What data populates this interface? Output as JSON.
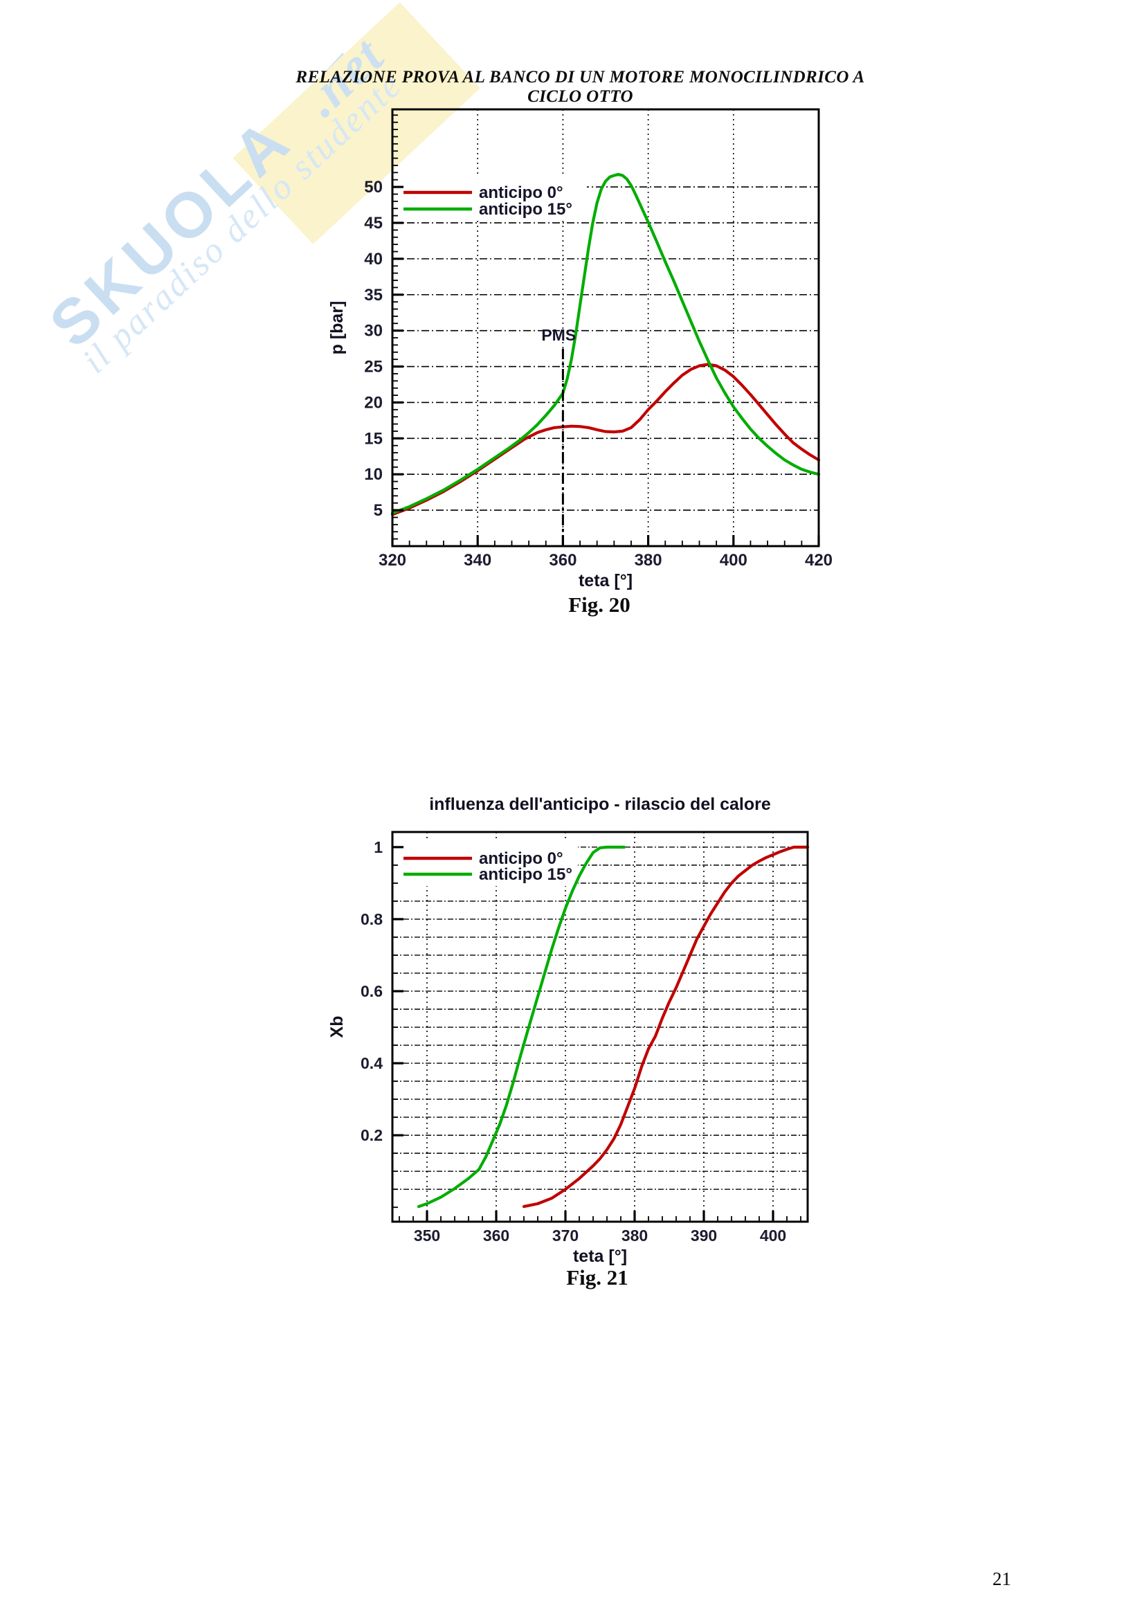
{
  "page": {
    "header": "RELAZIONE PROVA AL BANCO DI UN MOTORE MONOCILINDRICO A CICLO OTTO",
    "figure_captions": [
      "Fig. 20",
      "Fig. 21"
    ],
    "page_number": "21"
  },
  "watermark": {
    "brand": "SKUOLA",
    "suffix": ".net",
    "tagline": "il paradiso dello studente",
    "colors": {
      "blue": "#c9def1",
      "yellow": "#faf3cb"
    }
  },
  "chart_data": [
    {
      "type": "line",
      "title": "",
      "xlabel": "teta [°]",
      "ylabel": "p [bar]",
      "xlim": [
        320,
        420
      ],
      "ylim": [
        0,
        60.8
      ],
      "xticks": [
        320,
        340,
        360,
        380,
        400,
        420
      ],
      "yticks": [
        5,
        10,
        15,
        20,
        25,
        30,
        35,
        40,
        45,
        50
      ],
      "xgrid": [
        340,
        360,
        380,
        400
      ],
      "ygrid": [
        5,
        10,
        15,
        20,
        25,
        30,
        35,
        40,
        45,
        50
      ],
      "xminor": 4,
      "yminor": 1,
      "grid": true,
      "legend_position": "top-left",
      "annotation": {
        "text": "PMS",
        "x": 360
      },
      "series": [
        {
          "name": "anticipo 0°",
          "color": "#c00000",
          "points": [
            [
              320,
              4.4
            ],
            [
              324,
              5.3
            ],
            [
              328,
              6.4
            ],
            [
              332,
              7.6
            ],
            [
              336,
              9.0
            ],
            [
              340,
              10.5
            ],
            [
              344,
              12.1
            ],
            [
              348,
              13.7
            ],
            [
              351,
              14.9
            ],
            [
              354,
              15.8
            ],
            [
              356,
              16.2
            ],
            [
              358,
              16.5
            ],
            [
              360,
              16.6
            ],
            [
              362,
              16.7
            ],
            [
              364,
              16.65
            ],
            [
              366,
              16.5
            ],
            [
              368,
              16.2
            ],
            [
              370,
              15.95
            ],
            [
              372,
              15.9
            ],
            [
              374,
              16.0
            ],
            [
              376,
              16.5
            ],
            [
              378,
              17.6
            ],
            [
              380,
              19.0
            ],
            [
              382,
              20.2
            ],
            [
              384,
              21.5
            ],
            [
              386,
              22.7
            ],
            [
              388,
              23.8
            ],
            [
              390,
              24.6
            ],
            [
              392,
              25.1
            ],
            [
              394,
              25.3
            ],
            [
              396,
              25.1
            ],
            [
              398,
              24.5
            ],
            [
              400,
              23.6
            ],
            [
              402,
              22.4
            ],
            [
              404,
              21.1
            ],
            [
              406,
              19.7
            ],
            [
              408,
              18.3
            ],
            [
              410,
              16.9
            ],
            [
              412,
              15.6
            ],
            [
              414,
              14.4
            ],
            [
              416,
              13.5
            ],
            [
              418,
              12.7
            ],
            [
              420,
              12.0
            ]
          ]
        },
        {
          "name": "anticipo 15°",
          "color": "#00ad00",
          "points": [
            [
              320,
              4.6
            ],
            [
              324,
              5.5
            ],
            [
              328,
              6.6
            ],
            [
              332,
              7.8
            ],
            [
              336,
              9.2
            ],
            [
              340,
              10.7
            ],
            [
              344,
              12.3
            ],
            [
              347,
              13.5
            ],
            [
              350,
              14.8
            ],
            [
              352,
              15.8
            ],
            [
              354,
              16.9
            ],
            [
              356,
              18.2
            ],
            [
              358,
              19.6
            ],
            [
              360,
              21.3
            ],
            [
              361,
              23.3
            ],
            [
              362,
              26.0
            ],
            [
              363,
              29.5
            ],
            [
              364,
              33.5
            ],
            [
              365,
              37.5
            ],
            [
              366,
              41.5
            ],
            [
              367,
              45.0
            ],
            [
              368,
              47.8
            ],
            [
              369,
              49.7
            ],
            [
              370,
              50.8
            ],
            [
              371,
              51.4
            ],
            [
              372,
              51.6
            ],
            [
              373,
              51.75
            ],
            [
              374,
              51.6
            ],
            [
              375,
              51.1
            ],
            [
              376,
              50.2
            ],
            [
              377,
              49.0
            ],
            [
              378,
              47.7
            ],
            [
              379,
              46.4
            ],
            [
              380,
              45.1
            ],
            [
              382,
              42.4
            ],
            [
              384,
              39.6
            ],
            [
              386,
              36.9
            ],
            [
              388,
              34.1
            ],
            [
              390,
              31.3
            ],
            [
              392,
              28.5
            ],
            [
              394,
              25.9
            ],
            [
              396,
              23.4
            ],
            [
              398,
              21.3
            ],
            [
              400,
              19.4
            ],
            [
              402,
              17.8
            ],
            [
              404,
              16.3
            ],
            [
              406,
              15.0
            ],
            [
              408,
              13.9
            ],
            [
              410,
              12.9
            ],
            [
              412,
              12.0
            ],
            [
              414,
              11.3
            ],
            [
              416,
              10.7
            ],
            [
              418,
              10.3
            ],
            [
              420,
              10.0
            ]
          ]
        }
      ]
    },
    {
      "type": "line",
      "title": "influenza dell'anticipo - rilascio del calore",
      "xlabel": "teta [°]",
      "ylabel": "Xb",
      "xlim": [
        345,
        405
      ],
      "ylim": [
        -0.04,
        1.042
      ],
      "xticks": [
        350,
        360,
        370,
        380,
        390,
        400
      ],
      "yticks": [
        0.2,
        0.4,
        0.6,
        0.8,
        1
      ],
      "xgrid": [
        350,
        360,
        370,
        380,
        390,
        400
      ],
      "ygrid": [
        0.05,
        0.1,
        0.15,
        0.2,
        0.25,
        0.3,
        0.35,
        0.4,
        0.45,
        0.5,
        0.55,
        0.6,
        0.65,
        0.7,
        0.75,
        0.8,
        0.85,
        0.9,
        0.95,
        1
      ],
      "xminor": 2,
      "yminor": 0.05,
      "grid": true,
      "legend_position": "top-left",
      "series": [
        {
          "name": "anticipo 0°",
          "color": "#c00000",
          "points": [
            [
              364,
              0.002
            ],
            [
              366,
              0.01
            ],
            [
              368,
              0.025
            ],
            [
              370,
              0.05
            ],
            [
              372,
              0.08
            ],
            [
              374,
              0.115
            ],
            [
              375,
              0.135
            ],
            [
              376,
              0.16
            ],
            [
              377,
              0.19
            ],
            [
              378,
              0.23
            ],
            [
              379,
              0.28
            ],
            [
              380,
              0.33
            ],
            [
              381,
              0.39
            ],
            [
              382,
              0.44
            ],
            [
              383,
              0.475
            ],
            [
              384,
              0.525
            ],
            [
              385,
              0.57
            ],
            [
              386,
              0.61
            ],
            [
              387,
              0.655
            ],
            [
              388,
              0.7
            ],
            [
              389,
              0.745
            ],
            [
              390,
              0.78
            ],
            [
              391,
              0.815
            ],
            [
              392,
              0.845
            ],
            [
              393,
              0.875
            ],
            [
              394,
              0.9
            ],
            [
              395,
              0.92
            ],
            [
              396,
              0.935
            ],
            [
              397,
              0.95
            ],
            [
              398,
              0.961
            ],
            [
              399,
              0.971
            ],
            [
              400,
              0.979
            ],
            [
              401,
              0.987
            ],
            [
              402,
              0.994
            ],
            [
              403,
              1.0
            ],
            [
              405,
              1.0
            ]
          ]
        },
        {
          "name": "anticipo 15°",
          "color": "#00ad00",
          "points": [
            [
              348.8,
              0.002
            ],
            [
              350,
              0.01
            ],
            [
              352,
              0.028
            ],
            [
              354,
              0.052
            ],
            [
              356,
              0.08
            ],
            [
              357.5,
              0.105
            ],
            [
              358.5,
              0.14
            ],
            [
              359.5,
              0.185
            ],
            [
              360.5,
              0.23
            ],
            [
              361.5,
              0.285
            ],
            [
              362.5,
              0.35
            ],
            [
              363.5,
              0.42
            ],
            [
              364.7,
              0.5
            ],
            [
              366,
              0.585
            ],
            [
              367,
              0.65
            ],
            [
              368,
              0.715
            ],
            [
              369,
              0.775
            ],
            [
              370,
              0.83
            ],
            [
              371,
              0.878
            ],
            [
              372,
              0.92
            ],
            [
              373,
              0.955
            ],
            [
              374,
              0.985
            ],
            [
              375,
              0.998
            ],
            [
              376,
              1.0
            ],
            [
              378.5,
              1.0
            ]
          ]
        }
      ]
    }
  ]
}
